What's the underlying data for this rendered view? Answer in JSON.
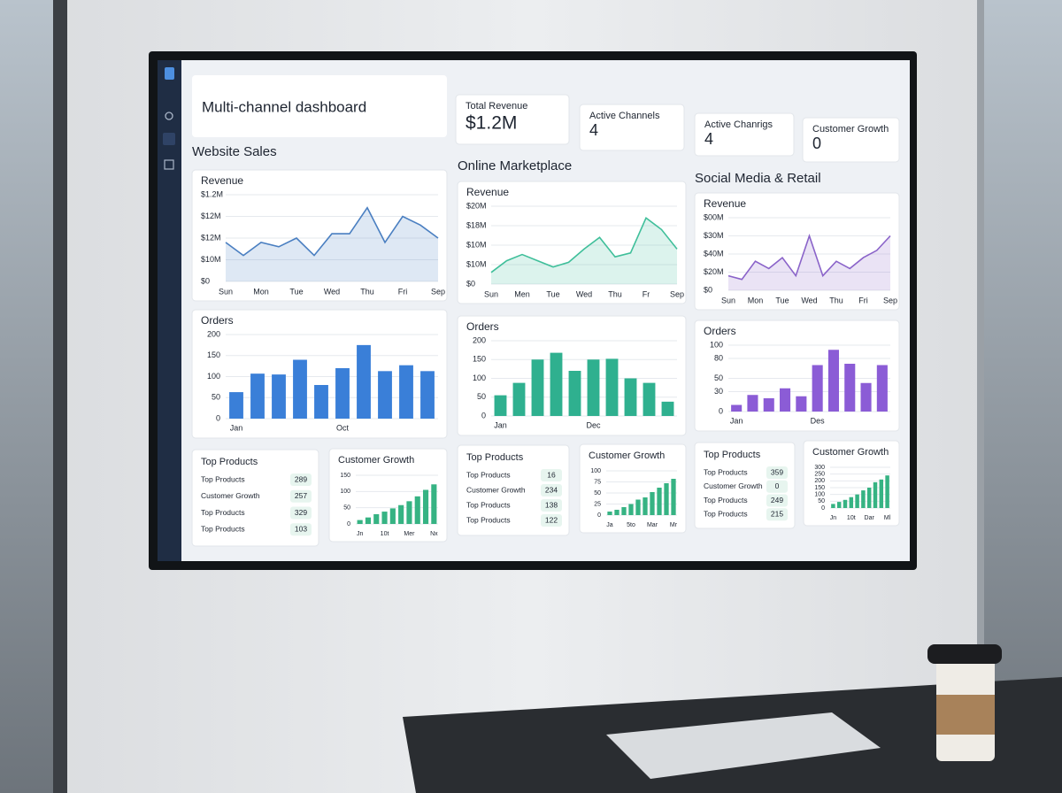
{
  "header": {
    "title": "Multi-channel dashboard"
  },
  "kpis": [
    {
      "label": "Total Revenue",
      "value": "$1.2M"
    },
    {
      "label": "Active Channels",
      "value": 4
    },
    {
      "label": "Active Chanrigs",
      "value": 4
    },
    {
      "label": "Customer Growth",
      "value": 0
    }
  ],
  "sections": [
    {
      "title": "Website Sales",
      "revenue": {
        "type": "line",
        "title": "Revenue",
        "color": "#4a7fc1",
        "categories": [
          "Sun",
          null,
          "Mon",
          null,
          "Tue",
          null,
          "Wed",
          null,
          "Thu",
          null,
          "Fri",
          null,
          "Sep"
        ],
        "values": [
          45,
          30,
          45,
          40,
          50,
          30,
          55,
          55,
          85,
          45,
          75,
          65,
          50
        ],
        "ylim": [
          0,
          100
        ],
        "y_labels": [
          "$1.2M",
          "$12M",
          "$12M",
          "$10M",
          "$0"
        ]
      },
      "orders": {
        "type": "bar",
        "title": "Orders",
        "color": "#3a7fd8",
        "categories": [
          "Jan",
          null,
          null,
          null,
          null,
          "Oct",
          null,
          null,
          null,
          null
        ],
        "values": [
          63,
          107,
          105,
          140,
          80,
          120,
          175,
          113,
          127,
          113
        ],
        "ylim": [
          0,
          200
        ],
        "yticks": [
          200,
          150,
          100,
          50,
          0
        ]
      },
      "top_products": {
        "title": "Top Products",
        "rows": [
          {
            "label": "Top Products",
            "value": 289
          },
          {
            "label": "Customer Growth",
            "value": 257
          },
          {
            "label": "Top Products",
            "value": 329
          },
          {
            "label": "Top Products",
            "value": 103
          }
        ]
      },
      "growth": {
        "type": "bar",
        "title": "Customer Growth",
        "color": "#36b383",
        "categories": [
          "Jn",
          null,
          null,
          "10t",
          null,
          null,
          "Mer",
          null,
          null,
          "Nx"
        ],
        "values": [
          12,
          20,
          30,
          38,
          48,
          58,
          70,
          85,
          105,
          122
        ],
        "ylim": [
          0,
          150
        ],
        "yticks": [
          150,
          100,
          50,
          0
        ]
      }
    },
    {
      "title": "Online Marketplace",
      "revenue": {
        "type": "line",
        "title": "Revenue",
        "color": "#3fbf9a",
        "categories": [
          "Sun",
          null,
          "Men",
          null,
          "Tue",
          null,
          "Wed",
          null,
          "Thu",
          null,
          "Fr",
          null,
          "Sep"
        ],
        "values": [
          15,
          30,
          38,
          30,
          22,
          28,
          45,
          60,
          35,
          40,
          85,
          70,
          45
        ],
        "ylim": [
          0,
          100
        ],
        "y_labels": [
          "$20M",
          "$18M",
          "$10M",
          "$10M",
          "$0"
        ]
      },
      "orders": {
        "type": "bar",
        "title": "Orders",
        "color": "#2fb08f",
        "categories": [
          "Jan",
          null,
          null,
          null,
          null,
          "Dec",
          null,
          null,
          null,
          null
        ],
        "values": [
          55,
          88,
          150,
          168,
          120,
          150,
          152,
          100,
          88,
          38
        ],
        "ylim": [
          0,
          200
        ],
        "yticks": [
          200,
          150,
          100,
          50,
          0
        ]
      },
      "top_products": {
        "title": "Top Products",
        "rows": [
          {
            "label": "Top Products",
            "value": 16
          },
          {
            "label": "Customer Growth",
            "value": 234
          },
          {
            "label": "Top Products",
            "value": 138
          },
          {
            "label": "Top Products",
            "value": 122
          }
        ]
      },
      "growth": {
        "type": "bar",
        "title": "Customer Growth",
        "color": "#36b383",
        "categories": [
          "Ja",
          null,
          null,
          "5to",
          null,
          null,
          "Mar",
          null,
          null,
          "Mr"
        ],
        "values": [
          8,
          12,
          18,
          25,
          35,
          40,
          52,
          62,
          72,
          82
        ],
        "ylim": [
          0,
          100
        ],
        "yticks": [
          100,
          75,
          50,
          25,
          0
        ]
      }
    },
    {
      "title": "Social Media & Retail",
      "revenue": {
        "type": "line",
        "title": "Revenue",
        "color": "#8a63c9",
        "categories": [
          "Sun",
          null,
          "Mon",
          null,
          "Tue",
          null,
          "Wed",
          null,
          "Thu",
          null,
          "Fri",
          null,
          "Sep"
        ],
        "values": [
          20,
          15,
          40,
          30,
          45,
          20,
          75,
          20,
          40,
          30,
          45,
          55,
          75
        ],
        "ylim": [
          0,
          100
        ],
        "y_labels": [
          "$00M",
          "$30M",
          "$40M",
          "$20M",
          "$0"
        ]
      },
      "orders": {
        "type": "bar",
        "title": "Orders",
        "color": "#8b5cd6",
        "categories": [
          "Jan",
          null,
          null,
          null,
          null,
          "Des",
          null,
          null,
          null,
          null
        ],
        "values": [
          10,
          25,
          20,
          35,
          23,
          70,
          93,
          72,
          43,
          70
        ],
        "ylim": [
          0,
          100
        ],
        "yticks": [
          100,
          80,
          50,
          30,
          0
        ]
      },
      "top_products": {
        "title": "Top Products",
        "rows": [
          {
            "label": "Top Products",
            "value": 359
          },
          {
            "label": "Customer Growth",
            "value": 0
          },
          {
            "label": "Top Products",
            "value": 249
          },
          {
            "label": "Top Products",
            "value": 215
          }
        ]
      },
      "growth": {
        "type": "bar",
        "title": "Customer Growth",
        "color": "#36b383",
        "categories": [
          "Jn",
          null,
          null,
          "10t",
          null,
          null,
          "Dar",
          null,
          null,
          "Ml"
        ],
        "values": [
          30,
          45,
          60,
          80,
          100,
          130,
          150,
          190,
          210,
          240
        ],
        "ylim": [
          0,
          300
        ],
        "yticks": [
          300,
          250,
          200,
          150,
          100,
          50,
          0
        ]
      }
    }
  ]
}
